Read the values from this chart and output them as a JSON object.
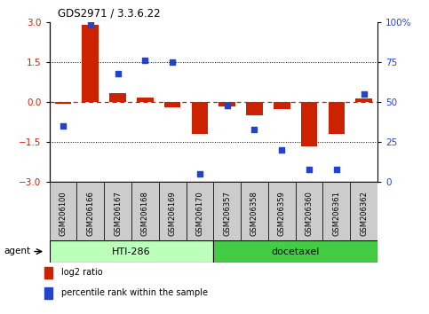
{
  "title": "GDS2971 / 3.3.6.22",
  "samples": [
    "GSM206100",
    "GSM206166",
    "GSM206167",
    "GSM206168",
    "GSM206169",
    "GSM206170",
    "GSM206357",
    "GSM206358",
    "GSM206359",
    "GSM206360",
    "GSM206361",
    "GSM206362"
  ],
  "log2_ratio": [
    -0.05,
    2.9,
    0.35,
    0.18,
    -0.2,
    -1.2,
    -0.15,
    -0.5,
    -0.25,
    -1.65,
    -1.2,
    0.15
  ],
  "percentile": [
    35,
    98,
    68,
    76,
    75,
    5,
    48,
    33,
    20,
    8,
    8,
    55
  ],
  "bar_color": "#cc2200",
  "dot_color": "#2244cc",
  "hti_label": "HTI-286",
  "docetaxel_label": "docetaxel",
  "agent_label": "agent",
  "ylim": [
    -3,
    3
  ],
  "yticks_left": [
    -3,
    -1.5,
    0,
    1.5,
    3
  ],
  "yticks_right": [
    0,
    25,
    50,
    75,
    100
  ],
  "legend_log2": "log2 ratio",
  "legend_pct": "percentile rank within the sample",
  "hti_color": "#bbffbb",
  "docetaxel_color": "#44cc44",
  "sample_box_color": "#cccccc",
  "n_hti": 6,
  "n_doc": 6
}
